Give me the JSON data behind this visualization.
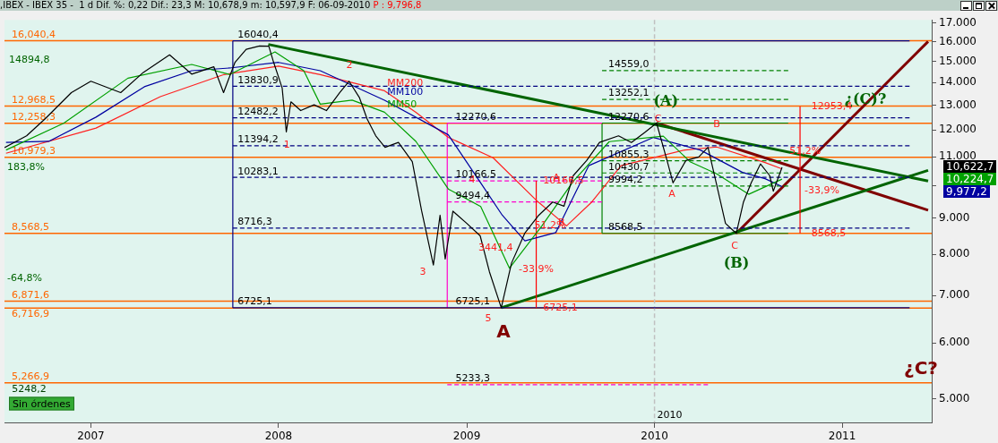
{
  "chart_data": {
    "type": "line",
    "title": ",IBEX - IBEX 35 -  1 d Dif. %: 0,22 Dif.: 23,3 M: 10,678,9 m: 10,597,9 F: 06-09-2010",
    "subtitle": "P : 9,796,8",
    "log": "y",
    "xlim": [
      "2006-07-17",
      "2011-06-24"
    ],
    "ylim": [
      4630,
      17170
    ],
    "xticks": [
      {
        "value": "2007-01-01",
        "label": "2007"
      },
      {
        "value": "2008-01-01",
        "label": "2008"
      },
      {
        "value": "2009-01-01",
        "label": "2009"
      },
      {
        "value": "2010-01-01",
        "label": "2010"
      },
      {
        "value": "2011-01-01",
        "label": "2011"
      }
    ],
    "yticks": [
      {
        "value": 5000,
        "label": "5.000"
      },
      {
        "value": 6000,
        "label": "6.000"
      },
      {
        "value": 7000,
        "label": "7.000"
      },
      {
        "value": 8000,
        "label": "8.000"
      },
      {
        "value": 9000,
        "label": "9.000"
      },
      {
        "value": 10000,
        "label": null
      },
      {
        "value": 11000,
        "label": "11.000"
      },
      {
        "value": 12000,
        "label": "12.000"
      },
      {
        "value": 13000,
        "label": "13.000"
      },
      {
        "value": 14000,
        "label": "14.000"
      },
      {
        "value": 15000,
        "label": "15.000"
      },
      {
        "value": 16000,
        "label": "16.000"
      },
      {
        "value": 17000,
        "label": "17.000"
      }
    ],
    "series": [
      {
        "color": "#000000",
        "x": [
          "2006-07-17",
          "2006-08-29",
          "2006-10-04",
          "2006-11-24",
          "2007-01-01",
          "2007-02-28",
          "2007-04-13",
          "2007-06-03",
          "2007-07-16",
          "2007-08-28",
          "2007-09-16",
          "2007-10-08",
          "2007-10-30",
          "2007-11-25",
          "2007-12-13",
          "2007-12-21",
          "2008-01-08",
          "2008-01-16",
          "2008-01-25",
          "2008-02-13",
          "2008-03-10",
          "2008-04-03",
          "2008-04-29",
          "2008-05-17",
          "2008-06-06",
          "2008-06-21",
          "2008-07-08",
          "2008-07-26",
          "2008-08-21",
          "2008-09-17",
          "2008-10-05",
          "2008-10-28",
          "2008-11-10",
          "2008-11-20",
          "2008-12-05",
          "2009-01-01",
          "2009-01-27",
          "2009-02-14",
          "2009-03-09",
          "2009-03-29",
          "2009-04-24",
          "2009-05-21",
          "2009-06-17",
          "2009-07-09",
          "2009-07-27",
          "2009-08-22",
          "2009-09-16",
          "2009-10-23",
          "2009-11-17",
          "2009-12-13",
          "2010-01-05",
          "2010-01-26",
          "2010-02-06",
          "2010-03-03",
          "2010-03-28",
          "2010-04-15",
          "2010-05-01",
          "2010-05-19",
          "2010-06-09",
          "2010-06-23",
          "2010-07-08",
          "2010-07-26",
          "2010-08-13",
          "2010-08-20",
          "2010-09-06"
        ],
        "values": [
          11330,
          11770,
          12440,
          13550,
          14060,
          13550,
          14470,
          15320,
          14390,
          14740,
          13550,
          14940,
          15600,
          15770,
          15760,
          15060,
          13750,
          11920,
          13150,
          12780,
          13020,
          12780,
          13550,
          14060,
          13340,
          12440,
          11770,
          11340,
          11520,
          10820,
          9230,
          7730,
          9090,
          7880,
          9210,
          8850,
          8500,
          7560,
          6725.1,
          7780,
          8580,
          9090,
          9490,
          9360,
          10340,
          10860,
          11520,
          11770,
          11520,
          11900,
          12270.6,
          10820,
          10100,
          10860,
          10990,
          11340,
          10100,
          8850,
          8568.5,
          9490,
          10100,
          10740,
          10340,
          9830,
          10622.7
        ]
      },
      {
        "name": "MM50",
        "color": "#00a000",
        "x": [
          "2006-07-20",
          "2006-11-09",
          "2007-03-14",
          "2007-07-16",
          "2007-09-28",
          "2007-12-25",
          "2008-02-19",
          "2008-03-22",
          "2008-05-23",
          "2008-07-25",
          "2008-09-24",
          "2008-11-26",
          "2009-01-28",
          "2009-03-25",
          "2009-05-27",
          "2009-07-28",
          "2009-10-05",
          "2010-01-18",
          "2010-03-11",
          "2010-05-02",
          "2010-07-03",
          "2010-09-06"
        ],
        "values": [
          11240,
          12260,
          14200,
          14850,
          14370,
          15470,
          14550,
          13050,
          13220,
          12710,
          11560,
          9900,
          9350,
          7650,
          8780,
          10170,
          11550,
          11760,
          10820,
          10400,
          9730,
          10224.7
        ]
      },
      {
        "name": "MM100",
        "color": "#0000a0",
        "x": [
          "2006-07-20",
          "2006-10-11",
          "2007-01-11",
          "2007-04-15",
          "2007-07-16",
          "2007-09-28",
          "2008-01-01",
          "2008-03-22",
          "2008-07-25",
          "2008-11-26",
          "2009-01-28",
          "2009-03-11",
          "2009-04-24",
          "2009-06-23",
          "2009-08-26",
          "2009-12-30",
          "2010-03-31",
          "2010-06-21",
          "2010-08-04",
          "2010-09-06"
        ],
        "values": [
          11520,
          11560,
          12510,
          13810,
          14550,
          14680,
          14950,
          14550,
          13220,
          11810,
          10100,
          9090,
          8360,
          8590,
          10680,
          11710,
          11240,
          10450,
          10240,
          9977.2
        ]
      },
      {
        "name": "MM200",
        "color": "#ff2020",
        "x": [
          "2006-07-20",
          "2007-01-11",
          "2007-05-16",
          "2007-09-17",
          "2008-01-01",
          "2008-03-22",
          "2008-07-25",
          "2008-09-24",
          "2008-11-26",
          "2009-02-21",
          "2009-05-19",
          "2009-07-14",
          "2009-09-01",
          "2009-10-28",
          "2010-03-01",
          "2010-05-02",
          "2010-08-04",
          "2010-09-06"
        ],
        "values": [
          11120,
          12070,
          13370,
          14370,
          14770,
          14370,
          13630,
          12710,
          11710,
          10960,
          9500,
          8780,
          9490,
          10680,
          11240,
          11350,
          10790,
          10570
        ]
      },
      {
        "color": "#006400",
        "x": [
          "2007-12-12",
          "2011-06-17"
        ],
        "values": [
          15850,
          10160
        ]
      },
      {
        "color": "#006400",
        "x": [
          "2009-03-09",
          "2011-06-17"
        ],
        "values": [
          6725.1,
          10520
        ]
      },
      {
        "color": "#800000",
        "x": [
          "2010-01-05",
          "2011-06-17"
        ],
        "values": [
          12270.6,
          9240
        ]
      },
      {
        "color": "#800000",
        "x": [
          "2010-06-09",
          "2011-06-17"
        ],
        "values": [
          8568.5,
          16000
        ]
      },
      {
        "color": "#ff0000",
        "x": [
          "2009-05-16",
          "2009-05-16"
        ],
        "values": [
          6725.1,
          10166.5
        ]
      },
      {
        "color": "#ff0000",
        "x": [
          "2010-10-11",
          "2010-10-11"
        ],
        "values": [
          8568.5,
          12953.4
        ]
      },
      {
        "color": "#000080",
        "x": [
          "2007-10-04",
          "2011-05-12"
        ],
        "values": [
          16040.4,
          16040.4
        ]
      },
      {
        "color": "#000080",
        "x": [
          "2007-10-04",
          "2011-05-12"
        ],
        "values": [
          6725.1,
          6725.1
        ]
      },
      {
        "color": "#000080",
        "x": [
          "2007-10-04",
          "2007-10-04"
        ],
        "values": [
          6725.1,
          16040.4
        ]
      },
      {
        "color": "#000080",
        "line_style": "dashed",
        "x": [
          "2007-10-04",
          "2011-05-12"
        ],
        "values": [
          13830.9,
          13830.9
        ]
      },
      {
        "color": "#000080",
        "line_style": "dashed",
        "x": [
          "2007-10-04",
          "2011-05-12"
        ],
        "values": [
          12482.2,
          12482.2
        ]
      },
      {
        "color": "#000080",
        "line_style": "dashed",
        "x": [
          "2007-10-04",
          "2011-05-12"
        ],
        "values": [
          11394.2,
          11394.2
        ]
      },
      {
        "color": "#000080",
        "line_style": "dashed",
        "x": [
          "2007-10-04",
          "2011-05-12"
        ],
        "values": [
          10283.1,
          10283.1
        ]
      },
      {
        "color": "#000080",
        "line_style": "dashed",
        "x": [
          "2007-10-04",
          "2011-05-12"
        ],
        "values": [
          8716.3,
          8716.3
        ]
      },
      {
        "color": "#ff00cc",
        "x": [
          "2008-11-24",
          "2008-11-24"
        ],
        "values": [
          6725.1,
          12270.6
        ]
      },
      {
        "color": "#ff00cc",
        "x": [
          "2008-11-24",
          "2009-09-21"
        ],
        "values": [
          12270.6,
          12270.6
        ]
      },
      {
        "color": "#ff00cc",
        "line_style": "dashed",
        "x": [
          "2008-11-24",
          "2009-09-21"
        ],
        "values": [
          10166.5,
          10166.5
        ]
      },
      {
        "color": "#ff00cc",
        "line_style": "dashed",
        "x": [
          "2008-11-24",
          "2009-09-21"
        ],
        "values": [
          9494.4,
          9494.4
        ]
      },
      {
        "color": "#ff00cc",
        "line_style": "dashed",
        "x": [
          "2008-11-24",
          "2010-04-15"
        ],
        "values": [
          5233.3,
          5233.3
        ]
      },
      {
        "color": "#008000",
        "x": [
          "2009-09-21",
          "2009-09-21"
        ],
        "values": [
          8568.5,
          12270.6
        ]
      },
      {
        "color": "#008000",
        "x": [
          "2009-09-21",
          "2010-09-18"
        ],
        "values": [
          12270.6,
          12270.6
        ]
      },
      {
        "color": "#008000",
        "x": [
          "2009-09-21",
          "2010-09-18"
        ],
        "values": [
          8568.5,
          8568.5
        ]
      },
      {
        "color": "#008000",
        "line_style": "dashed",
        "x": [
          "2009-09-21",
          "2010-09-18"
        ],
        "values": [
          14559.0,
          14559.0
        ]
      },
      {
        "color": "#008000",
        "line_style": "dashed",
        "x": [
          "2009-09-21",
          "2010-09-18"
        ],
        "values": [
          13252.1,
          13252.1
        ]
      },
      {
        "color": "#008000",
        "line_style": "dashed",
        "x": [
          "2009-09-21",
          "2010-09-18"
        ],
        "values": [
          10855.3,
          10855.3
        ]
      },
      {
        "color": "#008000",
        "line_style": "dashed",
        "x": [
          "2009-09-21",
          "2010-09-18"
        ],
        "values": [
          10430.7,
          10430.7
        ]
      },
      {
        "color": "#008000",
        "line_style": "dashed",
        "x": [
          "2009-09-21",
          "2010-09-18"
        ],
        "values": [
          9994.2,
          9994.2
        ]
      }
    ],
    "ref_lines": [
      {
        "axis": "y",
        "value": 16040.4,
        "label": "16,040,4",
        "color": "#ff6600"
      },
      {
        "axis": "y",
        "value": 12968.5,
        "label": "12,968,5",
        "color": "#ff6600"
      },
      {
        "axis": "y",
        "value": 12258.3,
        "label": "12,258,3",
        "color": "#ff6600"
      },
      {
        "axis": "y",
        "value": 10979.3,
        "label": "10,979,3",
        "color": "#ff6600"
      },
      {
        "axis": "y",
        "value": 8568.5,
        "label": "8,568,5",
        "color": "#ff6600"
      },
      {
        "axis": "y",
        "value": 6871.6,
        "label": "6,871,6",
        "color": "#ff6600"
      },
      {
        "axis": "y",
        "value": 6716.9,
        "label": "6,716,9",
        "color": "#ff6600"
      },
      {
        "axis": "y",
        "value": 5266.9,
        "label": "5,266,9",
        "color": "#ff6600"
      },
      {
        "axis": "x",
        "value": "2010-01-01",
        "label": "2010",
        "color": "#c0c0c0",
        "line_style": "dashed"
      }
    ],
    "annotations": [
      {
        "text": "1",
        "x": "2008-01-17",
        "y": 11420
      },
      {
        "text": "(A)",
        "x": "2010-01-23",
        "y": 13140
      },
      {
        "text": "C",
        "x": "2010-01-08",
        "y": 12440
      },
      {
        "text": "¿(C)?",
        "x": "2011-02-15",
        "y": 13210
      },
      {
        "text": "10166,5",
        "x": "2009-05-24",
        "y": 10166.5
      },
      {
        "text": "-33,9%",
        "x": "2009-05-16",
        "y": 7620
      },
      {
        "text": "6725,1",
        "x": "2009-05-24",
        "y": 6725.1
      },
      {
        "text": "3441,4",
        "x": "2009-02-26",
        "y": 8160
      },
      {
        "text": "51,2%",
        "x": "2009-06-12",
        "y": 8780
      },
      {
        "text": "A",
        "x": "2009-06-24",
        "y": 10250
      },
      {
        "text": "B",
        "x": "2009-07-04",
        "y": 8860
      },
      {
        "text": "51,2%",
        "x": "2010-10-21",
        "y": 11200
      },
      {
        "text": "12953,4",
        "x": "2010-10-28",
        "y": 12953.4
      },
      {
        "text": "8568,5",
        "x": "2010-10-28",
        "y": 8568.5
      },
      {
        "text": "16040,4",
        "x": "2007-10-08",
        "y": 16040.4
      },
      {
        "text": "13830,9",
        "x": "2007-10-08",
        "y": 13830.9
      },
      {
        "text": "12482,2",
        "x": "2007-10-08",
        "y": 12482.2
      },
      {
        "text": "11394,2",
        "x": "2007-10-08",
        "y": 11394.2
      },
      {
        "text": "10283,1",
        "x": "2007-10-08",
        "y": 10283.1
      },
      {
        "text": "8716,3",
        "x": "2007-10-08",
        "y": 8716.3
      },
      {
        "text": "6725,1",
        "x": "2007-10-08",
        "y": 6725.1
      },
      {
        "text": "12270,6",
        "x": "2008-12-05",
        "y": 12270.6
      },
      {
        "text": "10166,5",
        "x": "2008-12-05",
        "y": 10166.5
      },
      {
        "text": "9494,4",
        "x": "2008-12-05",
        "y": 9494.4
      },
      {
        "text": "6725,1",
        "x": "2008-12-05",
        "y": 6725.1
      },
      {
        "text": "5233,3",
        "x": "2008-12-05",
        "y": 5233.3
      },
      {
        "text": "14559,0",
        "x": "2009-09-28",
        "y": 14559.0
      },
      {
        "text": "13252,1",
        "x": "2009-09-28",
        "y": 13252.1
      },
      {
        "text": "12270,6",
        "x": "2009-09-28",
        "y": 12270.6
      },
      {
        "text": "10855,3",
        "x": "2009-09-28",
        "y": 10855.3
      },
      {
        "text": "10430,7",
        "x": "2009-09-28",
        "y": 10430.7
      },
      {
        "text": "9994,2",
        "x": "2009-09-28",
        "y": 9994.2
      },
      {
        "text": "8568,5",
        "x": "2009-09-28",
        "y": 8568.5
      },
      {
        "text": "5248,2",
        "x": "2006-07-26",
        "y": 5248.2
      },
      "2",
      "3",
      "4",
      "5",
      "A",
      "B",
      "A",
      "C",
      "(B)",
      "¿C?",
      "-33,9%",
      "14894,8",
      "183,8%",
      "-64,8%",
      "10,622,7",
      "10,224,7",
      "9,977,2",
      "Sin órdenes"
    ]
  }
}
